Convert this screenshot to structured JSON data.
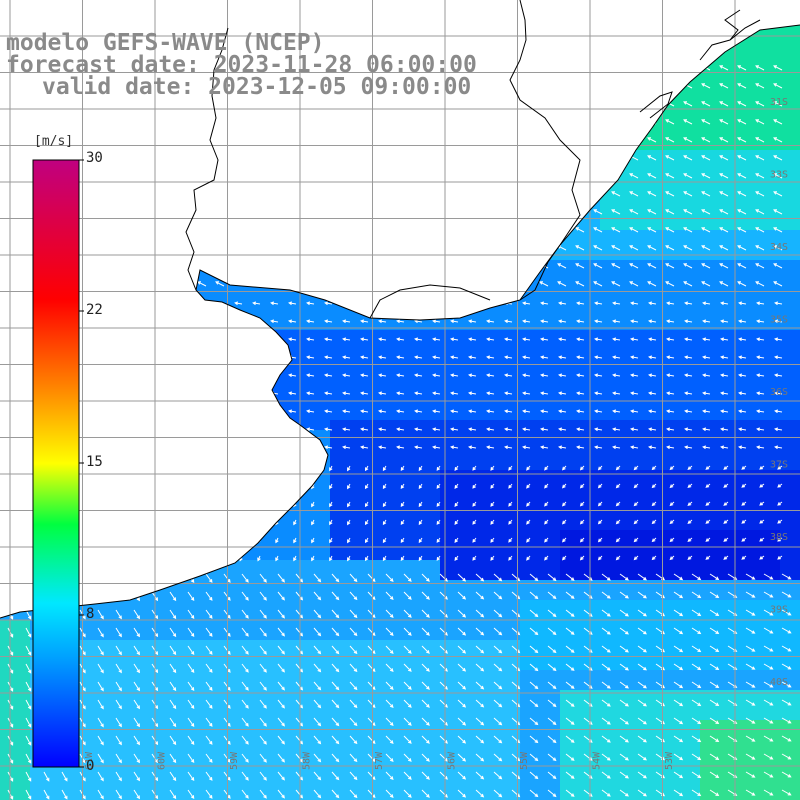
{
  "title": {
    "line1": "modelo GEFS-WAVE (NCEP)",
    "line2": "forecast date: 2023-11-28 06:00:00",
    "line3": "valid date: 2023-12-05 09:00:00"
  },
  "colorbar": {
    "units": "[m/s]",
    "ticks": [
      "30",
      "22",
      "15",
      "8",
      "0"
    ],
    "colors": [
      "#0000ff",
      "#00a0ff",
      "#00e8ff",
      "#00ff40",
      "#ffff00",
      "#ff8000",
      "#ff0000",
      "#c00080"
    ]
  },
  "lat_labels": [
    "31S",
    "33S",
    "34S",
    "35S",
    "36S",
    "37S",
    "38S",
    "39S",
    "40S"
  ],
  "lon_labels": [
    "61W",
    "60W",
    "59W",
    "58W",
    "57W",
    "56W",
    "55W",
    "54W",
    "53W"
  ],
  "colors": {
    "land": "#ffffff",
    "coast": "#000000",
    "grid": "#9a9a9a"
  }
}
